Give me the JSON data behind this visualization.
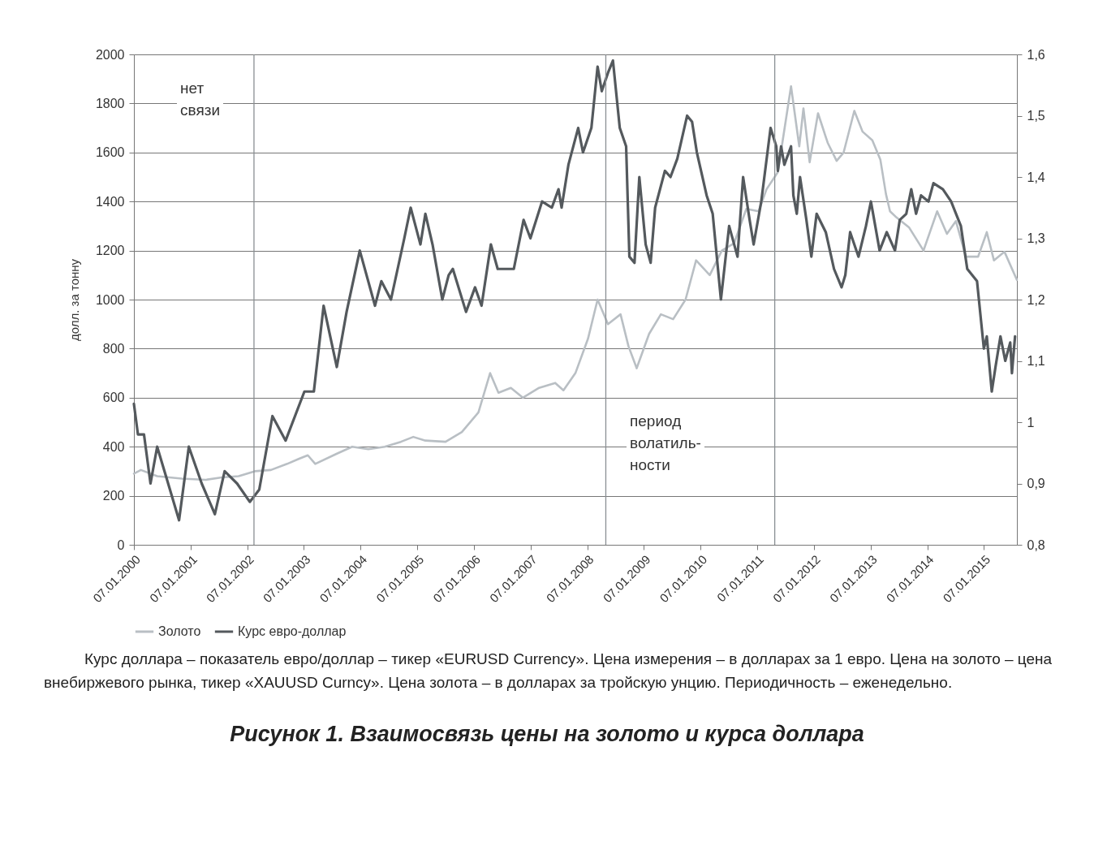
{
  "chart_data": {
    "type": "line",
    "title": "Рисунок 1. Взаимосвязь цены на золото и курса доллара",
    "ylabel": "долл. за тонну",
    "xlim": [
      "2000-01-07",
      "2015-08-08"
    ],
    "xticks": [
      {
        "value": "2000-01-07",
        "label": "07.01.2000"
      },
      {
        "value": "2001-01-07",
        "label": "07.01.2001"
      },
      {
        "value": "2002-01-07",
        "label": "07.01.2002"
      },
      {
        "value": "2003-01-07",
        "label": "07.01.2003"
      },
      {
        "value": "2004-01-07",
        "label": "07.01.2004"
      },
      {
        "value": "2005-01-07",
        "label": "07.01.2005"
      },
      {
        "value": "2006-01-07",
        "label": "07.01.2006"
      },
      {
        "value": "2007-01-07",
        "label": "07.01.2007"
      },
      {
        "value": "2008-01-07",
        "label": "07.01.2008"
      },
      {
        "value": "2009-01-07",
        "label": "07.01.2009"
      },
      {
        "value": "2010-01-07",
        "label": "07.01.2010"
      },
      {
        "value": "2011-01-07",
        "label": "07.01.2011"
      },
      {
        "value": "2012-01-07",
        "label": "07.01.2012"
      },
      {
        "value": "2013-01-07",
        "label": "07.01.2013"
      },
      {
        "value": "2014-01-07",
        "label": "07.01.2014"
      },
      {
        "value": "2015-01-07",
        "label": "07.01.2015"
      }
    ],
    "ylim": [
      0,
      2000
    ],
    "yticks": [
      0,
      200,
      400,
      600,
      800,
      1000,
      1200,
      1400,
      1600,
      1800,
      2000
    ],
    "y2lim": [
      0.8,
      1.6
    ],
    "y2ticks": [
      {
        "value": 0.8,
        "label": "0,8"
      },
      {
        "value": 0.9,
        "label": "0,9"
      },
      1,
      {
        "value": 1.1,
        "label": "1,1"
      },
      {
        "value": 1.2,
        "label": "1,2"
      },
      {
        "value": 1.3,
        "label": "1,3"
      },
      {
        "value": 1.4,
        "label": "1,4"
      },
      {
        "value": 1.5,
        "label": "1,5"
      },
      {
        "value": 1.6,
        "label": "1,6"
      }
    ],
    "grid": "y",
    "legend": "bottom",
    "series": [
      {
        "name": "Золото",
        "color": "#b9bfc4",
        "x": [
          "2000-01-07",
          "2000-02-21",
          "2000-06-05",
          "2000-11-10",
          "2001-04-15",
          "2001-07-27",
          "2001-11-12",
          "2002-02-24",
          "2002-06-08",
          "2002-09-21",
          "2002-12-04",
          "2003-02-01",
          "2003-03-21",
          "2003-08-02",
          "2003-11-14",
          "2004-02-26",
          "2004-06-11",
          "2004-09-23",
          "2004-12-12",
          "2005-02-28",
          "2005-07-08",
          "2005-10-21",
          "2006-02-05",
          "2006-04-21",
          "2006-06-14",
          "2006-09-02",
          "2006-11-18",
          "2007-03-03",
          "2007-06-15",
          "2007-08-07",
          "2007-10-23",
          "2008-01-12",
          "2008-03-14",
          "2008-05-20",
          "2008-08-09",
          "2008-09-29",
          "2008-11-21",
          "2009-02-09",
          "2009-04-26",
          "2009-07-14",
          "2009-10-02",
          "2009-12-09",
          "2010-03-07",
          "2010-05-24",
          "2010-08-11",
          "2010-10-29",
          "2011-01-16",
          "2011-03-08",
          "2011-05-20",
          "2011-08-13",
          "2011-10-05",
          "2011-11-01",
          "2011-12-11",
          "2012-02-03",
          "2012-04-05",
          "2012-06-02",
          "2012-07-17",
          "2012-09-24",
          "2012-11-16",
          "2013-01-18",
          "2013-03-11",
          "2013-04-16",
          "2013-05-12",
          "2013-06-23",
          "2013-09-11",
          "2013-12-14",
          "2014-03-12",
          "2014-05-14",
          "2014-07-11",
          "2014-09-13",
          "2014-12-01",
          "2015-01-26",
          "2015-03-13",
          "2015-05-20",
          "2015-08-08"
        ],
        "values": [
          290,
          305,
          280,
          270,
          265,
          275,
          280,
          300,
          305,
          330,
          350,
          365,
          330,
          370,
          400,
          390,
          400,
          420,
          440,
          425,
          420,
          460,
          540,
          700,
          620,
          640,
          600,
          640,
          660,
          630,
          700,
          840,
          1000,
          900,
          940,
          810,
          720,
          860,
          940,
          920,
          1000,
          1160,
          1100,
          1200,
          1230,
          1370,
          1360,
          1450,
          1520,
          1870,
          1625,
          1780,
          1560,
          1760,
          1640,
          1566,
          1600,
          1770,
          1685,
          1650,
          1570,
          1430,
          1360,
          1335,
          1295,
          1200,
          1360,
          1268,
          1320,
          1175,
          1175,
          1275,
          1160,
          1195,
          1080
        ]
      },
      {
        "name": "Курс евро-доллар",
        "color": "#54595d",
        "axis": "y2",
        "x": [
          "2000-01-07",
          "2000-02-02",
          "2000-03-12",
          "2000-04-23",
          "2000-06-05",
          "2000-08-03",
          "2000-10-24",
          "2000-12-26",
          "2001-03-19",
          "2001-06-12",
          "2001-08-14",
          "2001-11-02",
          "2002-01-23",
          "2002-03-25",
          "2002-06-18",
          "2002-09-11",
          "2003-01-10",
          "2003-03-12",
          "2003-05-14",
          "2003-08-07",
          "2003-10-09",
          "2004-01-02",
          "2004-04-09",
          "2004-05-20",
          "2004-07-21",
          "2004-10-15",
          "2004-11-25",
          "2005-01-27",
          "2005-02-28",
          "2005-04-15",
          "2005-06-17",
          "2005-07-28",
          "2005-08-24",
          "2005-11-17",
          "2006-01-14",
          "2006-02-25",
          "2006-04-26",
          "2006-06-09",
          "2006-09-21",
          "2006-11-23",
          "2007-01-06",
          "2007-03-22",
          "2007-05-24",
          "2007-07-06",
          "2007-07-26",
          "2007-09-08",
          "2007-11-10",
          "2007-12-11",
          "2008-02-03",
          "2008-03-14",
          "2008-04-10",
          "2008-05-20",
          "2008-06-21",
          "2008-08-04",
          "2008-09-14",
          "2008-10-05",
          "2008-11-07",
          "2008-12-08",
          "2009-01-18",
          "2009-02-19",
          "2009-03-20",
          "2009-05-22",
          "2009-06-27",
          "2009-08-10",
          "2009-10-12",
          "2009-11-13",
          "2009-12-14",
          "2010-02-15",
          "2010-03-26",
          "2010-05-18",
          "2010-07-10",
          "2010-09-02",
          "2010-10-08",
          "2010-11-19",
          "2010-12-15",
          "2011-02-02",
          "2011-04-03",
          "2011-05-10",
          "2011-05-20",
          "2011-06-10",
          "2011-07-01",
          "2011-08-13",
          "2011-08-28",
          "2011-09-19",
          "2011-10-10",
          "2011-11-20",
          "2011-12-22",
          "2012-01-25",
          "2012-03-24",
          "2012-05-16",
          "2012-07-04",
          "2012-07-28",
          "2012-08-28",
          "2012-10-21",
          "2012-12-08",
          "2013-01-09",
          "2013-03-06",
          "2013-04-21",
          "2013-06-13",
          "2013-07-14",
          "2013-08-25",
          "2013-09-26",
          "2013-10-27",
          "2013-11-28",
          "2014-01-15",
          "2014-02-16",
          "2014-04-18",
          "2014-06-10",
          "2014-08-12",
          "2014-09-22",
          "2014-11-24",
          "2015-01-07",
          "2015-01-26",
          "2015-02-27",
          "2015-03-23",
          "2015-04-24",
          "2015-05-25",
          "2015-06-26",
          "2015-07-07",
          "2015-07-27"
        ],
        "values": [
          1.03,
          0.98,
          0.98,
          0.9,
          0.96,
          0.91,
          0.84,
          0.96,
          0.9,
          0.85,
          0.92,
          0.9,
          0.87,
          0.89,
          1.01,
          0.97,
          1.05,
          1.05,
          1.19,
          1.09,
          1.18,
          1.28,
          1.19,
          1.23,
          1.2,
          1.3,
          1.35,
          1.29,
          1.34,
          1.29,
          1.2,
          1.24,
          1.25,
          1.18,
          1.22,
          1.19,
          1.29,
          1.25,
          1.25,
          1.33,
          1.3,
          1.36,
          1.35,
          1.38,
          1.35,
          1.42,
          1.48,
          1.44,
          1.48,
          1.58,
          1.54,
          1.57,
          1.59,
          1.48,
          1.45,
          1.27,
          1.26,
          1.4,
          1.29,
          1.26,
          1.35,
          1.41,
          1.4,
          1.43,
          1.5,
          1.49,
          1.44,
          1.37,
          1.34,
          1.2,
          1.32,
          1.27,
          1.4,
          1.33,
          1.29,
          1.36,
          1.48,
          1.45,
          1.41,
          1.45,
          1.42,
          1.45,
          1.37,
          1.34,
          1.4,
          1.33,
          1.27,
          1.34,
          1.31,
          1.25,
          1.22,
          1.24,
          1.31,
          1.27,
          1.32,
          1.36,
          1.28,
          1.31,
          1.28,
          1.33,
          1.34,
          1.38,
          1.34,
          1.37,
          1.36,
          1.39,
          1.38,
          1.36,
          1.32,
          1.25,
          1.23,
          1.12,
          1.14,
          1.05,
          1.09,
          1.14,
          1.1,
          1.13,
          1.08,
          1.14
        ]
      }
    ],
    "ref_lines": [
      {
        "axis": "x",
        "value": "2002-02-19",
        "label": null,
        "color": "#8a8f93"
      },
      {
        "axis": "x",
        "value": "2008-05-06",
        "label": null,
        "color": "#8a8f93"
      },
      {
        "axis": "x",
        "value": "2011-04-30",
        "label": null,
        "color": "#8a8f93"
      }
    ],
    "annotations": [
      "нет\nсвязи",
      "период\nволатиль-\nности",
      "Курс доллара – показатель евро/доллар – тикер «EURUSD Currency». Цена измерения – в долларах за 1 евро. Цена на золото – цена внебиржевого рынка, тикер «XAUUSD Curncy». Цена золота – в долларах за тройскую унцию. Периодичность – еженедельно."
    ]
  }
}
